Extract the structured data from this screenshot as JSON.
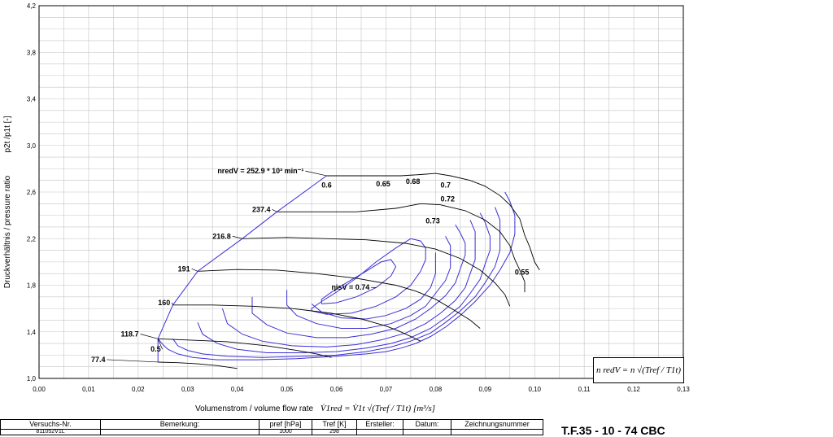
{
  "chart_data": {
    "type": "line",
    "title": "",
    "xlabel": "Volumenstrom / volume flow rate",
    "xlabel_formula": "V̇1red = V̇1t √(Tref / T1t)  [m³/s]",
    "ylabel": "Druckverhältnis / pressure ratio",
    "ylabel_symbol": "p2t /p1t [-]",
    "xlim": [
      0.0,
      0.13
    ],
    "ylim": [
      1.0,
      4.2
    ],
    "grid": true,
    "x_ticks": [
      "0,00",
      "0,01",
      "0,02",
      "0,03",
      "0,04",
      "0,05",
      "0,06",
      "0,07",
      "0,08",
      "0,09",
      "0,10",
      "0,11",
      "0,12",
      "0,13"
    ],
    "y_ticks": [
      "1,0",
      "1,4",
      "1,8",
      "2,2",
      "2,6",
      "3,0",
      "3,4",
      "3,8",
      "4,2"
    ],
    "speed_lines": [
      {
        "name": "77.4",
        "points": [
          [
            0.024,
            1.14
          ],
          [
            0.028,
            1.135
          ],
          [
            0.032,
            1.125
          ],
          [
            0.036,
            1.11
          ],
          [
            0.04,
            1.085
          ]
        ]
      },
      {
        "name": "118.7",
        "points": [
          [
            0.024,
            1.34
          ],
          [
            0.03,
            1.33
          ],
          [
            0.038,
            1.315
          ],
          [
            0.046,
            1.28
          ],
          [
            0.052,
            1.24
          ],
          [
            0.056,
            1.21
          ],
          [
            0.059,
            1.18
          ]
        ]
      },
      {
        "name": "160",
        "points": [
          [
            0.027,
            1.63
          ],
          [
            0.035,
            1.63
          ],
          [
            0.043,
            1.62
          ],
          [
            0.051,
            1.6
          ],
          [
            0.059,
            1.56
          ],
          [
            0.065,
            1.51
          ],
          [
            0.07,
            1.45
          ],
          [
            0.073,
            1.4
          ],
          [
            0.077,
            1.32
          ]
        ]
      },
      {
        "name": "191",
        "points": [
          [
            0.032,
            1.92
          ],
          [
            0.04,
            1.935
          ],
          [
            0.048,
            1.93
          ],
          [
            0.056,
            1.9
          ],
          [
            0.064,
            1.86
          ],
          [
            0.072,
            1.8
          ],
          [
            0.076,
            1.75
          ],
          [
            0.08,
            1.68
          ],
          [
            0.084,
            1.58
          ],
          [
            0.087,
            1.5
          ],
          [
            0.089,
            1.43
          ]
        ]
      },
      {
        "name": "216.8",
        "points": [
          [
            0.041,
            2.2
          ],
          [
            0.05,
            2.21
          ],
          [
            0.058,
            2.2
          ],
          [
            0.066,
            2.19
          ],
          [
            0.074,
            2.16
          ],
          [
            0.08,
            2.11
          ],
          [
            0.085,
            2.03
          ],
          [
            0.089,
            1.93
          ],
          [
            0.092,
            1.82
          ],
          [
            0.094,
            1.72
          ],
          [
            0.095,
            1.62
          ]
        ]
      },
      {
        "name": "237.4",
        "points": [
          [
            0.048,
            2.43
          ],
          [
            0.056,
            2.43
          ],
          [
            0.064,
            2.43
          ],
          [
            0.072,
            2.46
          ],
          [
            0.077,
            2.5
          ],
          [
            0.081,
            2.49
          ],
          [
            0.086,
            2.44
          ],
          [
            0.09,
            2.36
          ],
          [
            0.093,
            2.26
          ],
          [
            0.095,
            2.14
          ],
          [
            0.096,
            2.02
          ],
          [
            0.097,
            1.93
          ],
          [
            0.098,
            1.83
          ],
          [
            0.098,
            1.74
          ]
        ]
      },
      {
        "name": "252.9",
        "points": [
          [
            0.058,
            2.74
          ],
          [
            0.066,
            2.74
          ],
          [
            0.073,
            2.74
          ],
          [
            0.077,
            2.75
          ],
          [
            0.08,
            2.76
          ],
          [
            0.083,
            2.74
          ],
          [
            0.087,
            2.7
          ],
          [
            0.09,
            2.65
          ],
          [
            0.093,
            2.57
          ],
          [
            0.095,
            2.49
          ],
          [
            0.097,
            2.37
          ],
          [
            0.098,
            2.23
          ],
          [
            0.099,
            2.13
          ],
          [
            0.1,
            2.0
          ],
          [
            0.101,
            1.93
          ]
        ]
      }
    ],
    "surge_line_points": [
      [
        0.024,
        1.14
      ],
      [
        0.024,
        1.34
      ],
      [
        0.027,
        1.63
      ],
      [
        0.032,
        1.92
      ],
      [
        0.041,
        2.2
      ],
      [
        0.048,
        2.43
      ],
      [
        0.058,
        2.74
      ]
    ],
    "efficiency_islands": [
      {
        "name": "0.5",
        "points": [
          [
            0.024,
            1.34
          ],
          [
            0.025,
            1.29
          ],
          [
            0.026,
            1.25
          ],
          [
            0.028,
            1.21
          ],
          [
            0.031,
            1.18
          ],
          [
            0.036,
            1.16
          ],
          [
            0.044,
            1.16
          ],
          [
            0.052,
            1.17
          ],
          [
            0.06,
            1.19
          ],
          [
            0.066,
            1.21
          ],
          [
            0.07,
            1.23
          ],
          [
            0.073,
            1.26
          ],
          [
            0.076,
            1.3
          ],
          [
            0.079,
            1.36
          ],
          [
            0.082,
            1.44
          ],
          [
            0.085,
            1.54
          ],
          [
            0.088,
            1.66
          ],
          [
            0.091,
            1.8
          ],
          [
            0.093,
            1.93
          ],
          [
            0.095,
            2.08
          ],
          [
            0.096,
            2.24
          ],
          [
            0.096,
            2.4
          ],
          [
            0.095,
            2.52
          ],
          [
            0.094,
            2.6
          ]
        ]
      },
      {
        "name": "0.55",
        "points": [
          [
            0.027,
            1.34
          ],
          [
            0.028,
            1.28
          ],
          [
            0.03,
            1.24
          ],
          [
            0.033,
            1.21
          ],
          [
            0.038,
            1.19
          ],
          [
            0.045,
            1.18
          ],
          [
            0.053,
            1.19
          ],
          [
            0.06,
            1.2
          ],
          [
            0.066,
            1.23
          ],
          [
            0.071,
            1.27
          ],
          [
            0.075,
            1.32
          ],
          [
            0.079,
            1.39
          ],
          [
            0.082,
            1.48
          ],
          [
            0.085,
            1.58
          ],
          [
            0.088,
            1.7
          ],
          [
            0.09,
            1.82
          ],
          [
            0.092,
            1.96
          ],
          [
            0.093,
            2.1
          ],
          [
            0.093,
            2.24
          ],
          [
            0.093,
            2.36
          ],
          [
            0.092,
            2.47
          ]
        ]
      },
      {
        "name": "0.6",
        "points": [
          [
            0.032,
            1.48
          ],
          [
            0.033,
            1.38
          ],
          [
            0.036,
            1.3
          ],
          [
            0.04,
            1.25
          ],
          [
            0.046,
            1.22
          ],
          [
            0.053,
            1.22
          ],
          [
            0.06,
            1.23
          ],
          [
            0.066,
            1.26
          ],
          [
            0.071,
            1.3
          ],
          [
            0.075,
            1.35
          ],
          [
            0.079,
            1.43
          ],
          [
            0.082,
            1.52
          ],
          [
            0.085,
            1.62
          ],
          [
            0.087,
            1.73
          ],
          [
            0.089,
            1.85
          ],
          [
            0.09,
            1.98
          ],
          [
            0.091,
            2.1
          ],
          [
            0.091,
            2.22
          ],
          [
            0.09,
            2.34
          ],
          [
            0.089,
            2.42
          ]
        ]
      },
      {
        "name": "0.65",
        "points": [
          [
            0.037,
            1.6
          ],
          [
            0.038,
            1.47
          ],
          [
            0.041,
            1.38
          ],
          [
            0.045,
            1.32
          ],
          [
            0.051,
            1.28
          ],
          [
            0.058,
            1.27
          ],
          [
            0.064,
            1.29
          ],
          [
            0.069,
            1.33
          ],
          [
            0.074,
            1.39
          ],
          [
            0.078,
            1.47
          ],
          [
            0.081,
            1.56
          ],
          [
            0.084,
            1.67
          ],
          [
            0.086,
            1.78
          ],
          [
            0.087,
            1.9
          ],
          [
            0.088,
            2.02
          ],
          [
            0.088,
            2.14
          ],
          [
            0.088,
            2.26
          ],
          [
            0.087,
            2.36
          ]
        ]
      },
      {
        "name": "0.68",
        "points": [
          [
            0.043,
            1.7
          ],
          [
            0.043,
            1.56
          ],
          [
            0.046,
            1.46
          ],
          [
            0.05,
            1.39
          ],
          [
            0.056,
            1.35
          ],
          [
            0.062,
            1.35
          ],
          [
            0.067,
            1.38
          ],
          [
            0.072,
            1.43
          ],
          [
            0.076,
            1.51
          ],
          [
            0.079,
            1.6
          ],
          [
            0.082,
            1.71
          ],
          [
            0.084,
            1.82
          ],
          [
            0.085,
            1.94
          ],
          [
            0.086,
            2.06
          ],
          [
            0.086,
            2.16
          ],
          [
            0.085,
            2.25
          ],
          [
            0.084,
            2.32
          ]
        ]
      },
      {
        "name": "0.7",
        "points": [
          [
            0.05,
            1.76
          ],
          [
            0.05,
            1.63
          ],
          [
            0.052,
            1.54
          ],
          [
            0.056,
            1.47
          ],
          [
            0.061,
            1.43
          ],
          [
            0.066,
            1.43
          ],
          [
            0.071,
            1.47
          ],
          [
            0.075,
            1.54
          ],
          [
            0.078,
            1.62
          ],
          [
            0.08,
            1.73
          ],
          [
            0.082,
            1.84
          ],
          [
            0.083,
            1.95
          ],
          [
            0.083,
            2.05
          ],
          [
            0.083,
            2.14
          ],
          [
            0.082,
            2.22
          ]
        ]
      },
      {
        "name": "0.72",
        "points": [
          [
            0.055,
            1.64
          ],
          [
            0.057,
            1.57
          ],
          [
            0.061,
            1.52
          ],
          [
            0.066,
            1.51
          ],
          [
            0.07,
            1.54
          ],
          [
            0.074,
            1.6
          ],
          [
            0.077,
            1.68
          ],
          [
            0.079,
            1.78
          ],
          [
            0.08,
            1.9
          ],
          [
            0.08,
            2.0
          ],
          [
            0.08,
            2.08
          ]
        ]
      },
      {
        "name": "0.73",
        "points": [
          [
            0.055,
            1.58
          ],
          [
            0.058,
            1.55
          ],
          [
            0.063,
            1.56
          ],
          [
            0.068,
            1.62
          ],
          [
            0.072,
            1.7
          ],
          [
            0.075,
            1.8
          ],
          [
            0.077,
            1.92
          ],
          [
            0.078,
            2.02
          ],
          [
            0.078,
            2.12
          ],
          [
            0.077,
            2.18
          ],
          [
            0.075,
            2.2
          ],
          [
            0.072,
            2.12
          ],
          [
            0.068,
            2.0
          ],
          [
            0.064,
            1.86
          ],
          [
            0.06,
            1.74
          ],
          [
            0.057,
            1.66
          ],
          [
            0.055,
            1.6
          ],
          [
            0.055,
            1.58
          ]
        ]
      },
      {
        "name": "0.74",
        "points": [
          [
            0.057,
            1.64
          ],
          [
            0.06,
            1.65
          ],
          [
            0.064,
            1.7
          ],
          [
            0.068,
            1.78
          ],
          [
            0.071,
            1.88
          ],
          [
            0.072,
            1.96
          ],
          [
            0.071,
            2.02
          ],
          [
            0.069,
            2.0
          ],
          [
            0.066,
            1.92
          ],
          [
            0.062,
            1.82
          ],
          [
            0.059,
            1.74
          ],
          [
            0.057,
            1.68
          ],
          [
            0.057,
            1.64
          ]
        ]
      }
    ],
    "annotations": [
      {
        "text": "nredV = 252.9 * 10³ min⁻¹",
        "x": 0.036,
        "y": 2.76,
        "bold": true,
        "leader_to": [
          0.058,
          2.74
        ]
      },
      {
        "text": "237.4",
        "x": 0.043,
        "y": 2.43,
        "bold": true,
        "leader_to": [
          0.048,
          2.43
        ]
      },
      {
        "text": "216.8",
        "x": 0.035,
        "y": 2.2,
        "bold": true,
        "leader_to": [
          0.041,
          2.2
        ]
      },
      {
        "text": "191",
        "x": 0.028,
        "y": 1.92,
        "bold": true,
        "leader_to": [
          0.032,
          1.92
        ]
      },
      {
        "text": "160",
        "x": 0.024,
        "y": 1.63,
        "bold": true,
        "leader_to": [
          0.027,
          1.63
        ]
      },
      {
        "text": "118.7",
        "x": 0.0165,
        "y": 1.36,
        "bold": true,
        "leader_to": [
          0.024,
          1.34
        ]
      },
      {
        "text": "77.4",
        "x": 0.0105,
        "y": 1.14,
        "bold": true,
        "leader_to": [
          0.024,
          1.14
        ]
      },
      {
        "text": "0.5",
        "x": 0.0225,
        "y": 1.23,
        "bold": true,
        "leader_to": [
          0.024,
          1.34
        ]
      },
      {
        "text": "0.6",
        "x": 0.057,
        "y": 2.64,
        "bold": true
      },
      {
        "text": "0.65",
        "x": 0.068,
        "y": 2.65,
        "bold": true
      },
      {
        "text": "0.68",
        "x": 0.074,
        "y": 2.67,
        "bold": true
      },
      {
        "text": "0.7",
        "x": 0.081,
        "y": 2.64,
        "bold": true
      },
      {
        "text": "0.72",
        "x": 0.081,
        "y": 2.52,
        "bold": true
      },
      {
        "text": "0.73",
        "x": 0.078,
        "y": 2.33,
        "bold": true
      },
      {
        "text": "0.55",
        "x": 0.096,
        "y": 1.89,
        "bold": true
      },
      {
        "text": "ηisV = 0.74",
        "x": 0.059,
        "y": 1.76,
        "bold": true,
        "leader_to": [
          0.068,
          1.78
        ]
      }
    ]
  },
  "formula_box": "n redV = n √(Tref / T1t)",
  "footer": {
    "headers": [
      "Versuchs-Nr.",
      "Bemerkung:",
      "pref [hPa]",
      "Tref [K]",
      "Ersteller:",
      "Datum:",
      "Zeichnungsnummer"
    ],
    "row2": [
      "811052V1L",
      "",
      "1000",
      "298",
      "",
      "",
      ""
    ],
    "model": "T.F.35 - 10 - 74 CBC"
  },
  "colors": {
    "speed_line": "#000000",
    "efficiency": "#3b2fd6",
    "grid": "#c4c4c4",
    "axis": "#000000"
  }
}
